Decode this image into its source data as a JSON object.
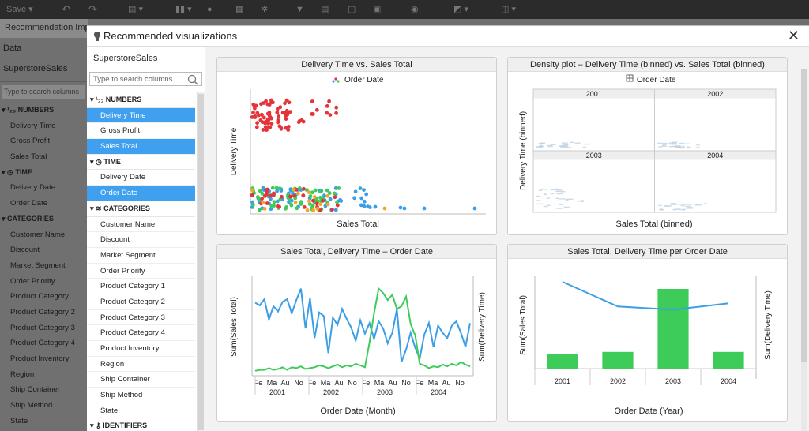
{
  "app": {
    "toolbar": {
      "save_label": "Save ▾"
    },
    "doc_tab": "Recommendation Impact",
    "bg_panel": {
      "data_tab": "Data",
      "datasource": "SuperstoreSales",
      "search_placeholder": "Type to search columns",
      "sections": [
        {
          "title": "¹₂₃ NUMBERS",
          "items": [
            "Delivery Time",
            "Gross Profit",
            "Sales Total"
          ]
        },
        {
          "title": "◷ TIME",
          "items": [
            "Delivery Date",
            "Order Date"
          ]
        },
        {
          "title": "CATEGORIES",
          "items": [
            "Customer Name",
            "Discount",
            "Market Segment",
            "Order Priority",
            "Product Category 1",
            "Product Category 2",
            "Product Category 3",
            "Product Category 4",
            "Product Inventory",
            "Region",
            "Ship Container",
            "Ship Method",
            "State"
          ]
        }
      ]
    }
  },
  "dialog": {
    "title": "Recommended visualizations",
    "close_label": "✕",
    "datasource": "SuperstoreSales",
    "search_placeholder": "Type to search columns",
    "numbers_title": "NUMBERS",
    "numbers_items": [
      {
        "label": "Delivery Time",
        "selected": true
      },
      {
        "label": "Gross Profit",
        "selected": false
      },
      {
        "label": "Sales Total",
        "selected": true
      }
    ],
    "time_title": "TIME",
    "time_items": [
      {
        "label": "Delivery Date",
        "selected": false
      },
      {
        "label": "Order Date",
        "selected": true
      }
    ],
    "categories_title": "CATEGORIES",
    "categories_items": [
      "Customer Name",
      "Discount",
      "Market Segment",
      "Order Priority",
      "Product Category 1",
      "Product Category 2",
      "Product Category 3",
      "Product Category 4",
      "Product Inventory",
      "Region",
      "Ship Container",
      "Ship Method",
      "State"
    ],
    "identifiers_title": "IDENTIFIERS",
    "colors": {
      "selected": "#3fa0ef",
      "series_blue": "#3a9fe6",
      "series_green": "#3dcb5a",
      "red": "#e5333b",
      "orange": "#f5a623"
    }
  },
  "chart_data": [
    {
      "type": "scatter",
      "title": "Delivery Time vs. Sales Total",
      "legend": "Order Date",
      "xlabel": "Sales Total",
      "ylabel": "Delivery Time",
      "clusters": [
        {
          "color": "#e5333b",
          "region": "high-delivery-low-sales",
          "count": 80
        },
        {
          "color": "#3a9fe6",
          "region": "low-delivery-band",
          "count": 60
        },
        {
          "color": "#3dcb5a",
          "region": "low-delivery-band",
          "count": 60
        },
        {
          "color": "#e5333b",
          "region": "low-delivery-band",
          "count": 30
        },
        {
          "color": "#f5a623",
          "region": "low-delivery-band",
          "count": 15
        }
      ]
    },
    {
      "type": "heatmap",
      "title": "Density plot – Delivery Time (binned) vs. Sales Total (binned)",
      "legend": "Order Date",
      "xlabel": "Sales Total (binned)",
      "ylabel": "Delivery Time (binned)",
      "panels": [
        "2001",
        "2002",
        "2003",
        "2004"
      ]
    },
    {
      "type": "line",
      "title": "Sales Total, Delivery Time – Order Date",
      "xlabel": "Order Date (Month)",
      "ylabel_left": "Sum(Sales Total)",
      "ylabel_right": "Sum(Delivery Time)",
      "month_ticks": [
        "Fe",
        "Ma",
        "Au",
        "No",
        "Fe",
        "Ma",
        "Au",
        "No",
        "Fe",
        "Ma",
        "Au",
        "No",
        "Fe",
        "Ma",
        "Au",
        "No"
      ],
      "year_ticks": [
        "2001",
        "2002",
        "2003",
        "2004"
      ],
      "series": [
        {
          "name": "Sum(Sales Total)",
          "color": "#3a9fe6",
          "values": [
            0.79,
            0.76,
            0.83,
            0.6,
            0.75,
            0.69,
            0.8,
            0.83,
            0.67,
            0.82,
            0.95,
            0.5,
            0.84,
            0.39,
            0.68,
            0.64,
            0.22,
            0.62,
            0.54,
            0.72,
            0.61,
            0.51,
            0.36,
            0.59,
            0.44,
            0.56,
            0.38,
            0.58,
            0.5,
            0.33,
            0.45,
            0.72,
            0.12,
            0.26,
            0.45,
            0.28,
            0.16,
            0.43,
            0.56,
            0.29,
            0.53,
            0.45,
            0.39,
            0.53,
            0.58,
            0.45,
            0.29,
            0.56
          ]
        },
        {
          "name": "Sum(Delivery Time)",
          "color": "#3dcb5a",
          "values": [
            0.02,
            0.03,
            0.03,
            0.05,
            0.03,
            0.04,
            0.06,
            0.03,
            0.06,
            0.05,
            0.07,
            0.04,
            0.05,
            0.06,
            0.08,
            0.07,
            0.05,
            0.07,
            0.09,
            0.06,
            0.08,
            0.07,
            0.1,
            0.08,
            0.06,
            0.34,
            0.67,
            0.95,
            0.9,
            0.82,
            0.88,
            0.72,
            0.75,
            0.86,
            0.55,
            0.42,
            0.1,
            0.08,
            0.05,
            0.07,
            0.06,
            0.09,
            0.07,
            0.1,
            0.08,
            0.12,
            0.09,
            0.07
          ]
        }
      ]
    },
    {
      "type": "bar",
      "title": "Sales Total, Delivery Time per Order Date",
      "xlabel": "Order Date (Year)",
      "ylabel_left": "Sum(Sales Total)",
      "ylabel_right": "Sum(Delivery Time)",
      "categories": [
        "2001",
        "2002",
        "2003",
        "2004"
      ],
      "series": [
        {
          "name": "Sum(Sales Total)",
          "color": "#3dcb5a",
          "values": [
            0.18,
            0.21,
            1.0,
            0.21
          ]
        },
        {
          "name": "Sum(Delivery Time)",
          "color": "#3a9fe6",
          "values": [
            0.99,
            0.68,
            0.64,
            0.72
          ]
        }
      ]
    }
  ]
}
